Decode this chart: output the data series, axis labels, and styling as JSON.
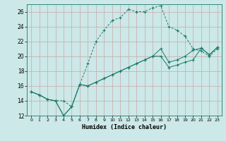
{
  "xlabel": "Humidex (Indice chaleur)",
  "bg_color": "#cce8e8",
  "grid_color": "#aacccc",
  "line_color": "#1a7a6a",
  "xlim": [
    -0.5,
    23.5
  ],
  "ylim": [
    12,
    27
  ],
  "xticks": [
    0,
    1,
    2,
    3,
    4,
    5,
    6,
    7,
    8,
    9,
    10,
    11,
    12,
    13,
    14,
    15,
    16,
    17,
    18,
    19,
    20,
    21,
    22,
    23
  ],
  "yticks": [
    12,
    14,
    16,
    18,
    20,
    22,
    24,
    26
  ],
  "line1_x": [
    0,
    1,
    2,
    3,
    4,
    5,
    6,
    7,
    8,
    9,
    10,
    11,
    12,
    13,
    14,
    15,
    16,
    17,
    18,
    19,
    20,
    21,
    22,
    23
  ],
  "line1_y": [
    15.2,
    14.8,
    14.2,
    14.0,
    14.0,
    13.2,
    16.2,
    19.0,
    22.0,
    23.5,
    24.8,
    25.2,
    26.3,
    26.0,
    26.0,
    26.5,
    26.8,
    24.0,
    23.5,
    22.7,
    21.0,
    20.7,
    20.0,
    21.0
  ],
  "line2_x": [
    0,
    1,
    2,
    3,
    4,
    5,
    6,
    7,
    8,
    9,
    10,
    11,
    12,
    13,
    14,
    15,
    16,
    17,
    18,
    19,
    20,
    21,
    22,
    23
  ],
  "line2_y": [
    15.2,
    14.8,
    14.2,
    14.0,
    12.0,
    13.2,
    16.2,
    16.0,
    16.5,
    17.0,
    17.5,
    18.0,
    18.5,
    19.0,
    19.5,
    20.0,
    21.0,
    19.2,
    19.5,
    20.0,
    20.8,
    21.1,
    20.2,
    21.2
  ],
  "line3_x": [
    0,
    1,
    2,
    3,
    4,
    5,
    6,
    7,
    8,
    9,
    10,
    11,
    12,
    13,
    14,
    15,
    16,
    17,
    18,
    19,
    20,
    21,
    22,
    23
  ],
  "line3_y": [
    15.2,
    14.8,
    14.2,
    14.0,
    12.0,
    13.2,
    16.2,
    16.0,
    16.5,
    17.0,
    17.5,
    18.0,
    18.5,
    19.0,
    19.5,
    20.0,
    20.0,
    18.5,
    18.8,
    19.2,
    19.5,
    21.1,
    20.2,
    21.2
  ]
}
